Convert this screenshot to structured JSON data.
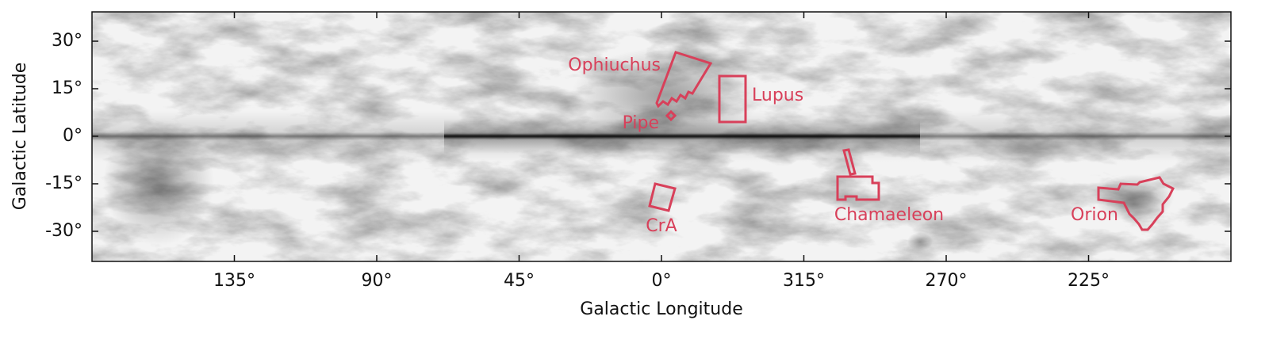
{
  "axes": {
    "x_label": "Galactic Longitude",
    "y_label": "Galactic Latitude",
    "xlim": [
      180,
      -180
    ],
    "ylim": [
      -39.5,
      39.25
    ],
    "xticks": [
      {
        "value": 135,
        "label": "135°"
      },
      {
        "value": 90,
        "label": "90°"
      },
      {
        "value": 45,
        "label": "45°"
      },
      {
        "value": 0,
        "label": "0°"
      },
      {
        "value": 315,
        "label": "315°"
      },
      {
        "value": 270,
        "label": "270°"
      },
      {
        "value": 225,
        "label": "225°"
      }
    ],
    "yticks": [
      {
        "value": 30,
        "label": "30°"
      },
      {
        "value": 15,
        "label": "15°"
      },
      {
        "value": 0,
        "label": "0°"
      },
      {
        "value": -15,
        "label": "-15°"
      },
      {
        "value": -30,
        "label": "-30°"
      }
    ]
  },
  "regions": [
    {
      "label": "Ophiuchus"
    },
    {
      "label": "Pipe"
    },
    {
      "label": "Lupus"
    },
    {
      "label": "CrA"
    },
    {
      "label": "Chamaeleon"
    },
    {
      "label": "Orion"
    }
  ]
}
